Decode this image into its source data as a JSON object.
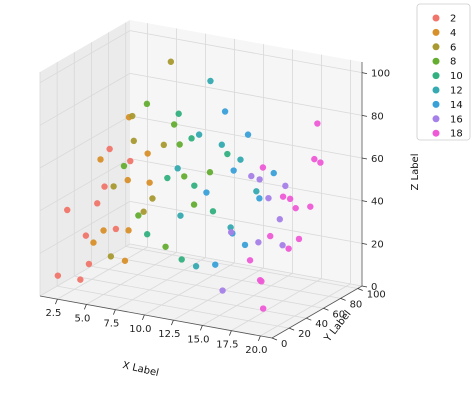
{
  "chart_data": {
    "type": "scatter",
    "title": "",
    "xlabel": "X Label",
    "ylabel": "Y Label",
    "zlabel": "Z Label",
    "xlim": [
      1,
      21
    ],
    "ylim": [
      0,
      105
    ],
    "zlim": [
      0,
      105
    ],
    "x_ticks": [
      "2.5",
      "5.0",
      "7.5",
      "10.0",
      "12.5",
      "15.0",
      "17.5",
      "20.0"
    ],
    "y_ticks": [
      "0",
      "20",
      "40",
      "60",
      "80",
      "100"
    ],
    "z_ticks": [
      "0",
      "20",
      "40",
      "60",
      "80",
      "100"
    ],
    "grid": true,
    "legend_position": "upper-right-outside",
    "series": [
      {
        "name": "2",
        "color": "#f0756a",
        "points": [
          [
            1.5,
            25,
            35
          ],
          [
            2,
            40,
            20
          ],
          [
            2.5,
            55,
            40
          ],
          [
            1.5,
            60,
            30
          ],
          [
            2,
            75,
            15
          ],
          [
            3,
            20,
            5
          ],
          [
            2.5,
            85,
            45
          ],
          [
            3,
            30,
            10
          ],
          [
            1.8,
            10,
            8
          ],
          [
            2.2,
            65,
            55
          ]
        ]
      },
      {
        "name": "4",
        "color": "#d8902a",
        "points": [
          [
            4,
            30,
            60
          ],
          [
            4.5,
            55,
            45
          ],
          [
            5,
            20,
            30
          ],
          [
            3.5,
            70,
            70
          ],
          [
            4,
            85,
            50
          ],
          [
            5,
            45,
            10
          ],
          [
            4.5,
            15,
            25
          ],
          [
            3.8,
            90,
            35
          ],
          [
            4.2,
            60,
            20
          ]
        ]
      },
      {
        "name": "6",
        "color": "#a89a30",
        "points": [
          [
            6,
            40,
            80
          ],
          [
            6.5,
            70,
            60
          ],
          [
            5.5,
            25,
            50
          ],
          [
            6,
            85,
            95
          ],
          [
            7,
            50,
            40
          ],
          [
            6,
            15,
            20
          ],
          [
            5.5,
            60,
            30
          ],
          [
            6.5,
            35,
            70
          ]
        ]
      },
      {
        "name": "8",
        "color": "#64ad31",
        "points": [
          [
            8,
            30,
            90
          ],
          [
            8.5,
            55,
            75
          ],
          [
            7.5,
            75,
            60
          ],
          [
            8,
            20,
            40
          ],
          [
            9,
            60,
            50
          ],
          [
            8,
            85,
            30
          ],
          [
            8.5,
            45,
            20
          ],
          [
            7.5,
            10,
            65
          ],
          [
            9,
            90,
            45
          ]
        ]
      },
      {
        "name": "10",
        "color": "#33b080",
        "points": [
          [
            10,
            40,
            85
          ],
          [
            10.5,
            20,
            60
          ],
          [
            9.5,
            65,
            45
          ],
          [
            10,
            80,
            30
          ],
          [
            11,
            30,
            20
          ],
          [
            10,
            55,
            70
          ],
          [
            9.5,
            10,
            35
          ],
          [
            10.5,
            90,
            55
          ]
        ]
      },
      {
        "name": "12",
        "color": "#35aab0",
        "points": [
          [
            12,
            50,
            100
          ],
          [
            12.5,
            30,
            80
          ],
          [
            11.5,
            70,
            65
          ],
          [
            12,
            15,
            45
          ],
          [
            13,
            60,
            30
          ],
          [
            12,
            85,
            55
          ],
          [
            11.5,
            40,
            15
          ],
          [
            12.5,
            5,
            70
          ],
          [
            13,
            90,
            40
          ]
        ]
      },
      {
        "name": "14",
        "color": "#3aa0d8",
        "points": [
          [
            14,
            40,
            90
          ],
          [
            14.5,
            60,
            75
          ],
          [
            13.5,
            25,
            55
          ],
          [
            14,
            80,
            40
          ],
          [
            15,
            15,
            25
          ],
          [
            14,
            50,
            60
          ],
          [
            13.5,
            70,
            20
          ],
          [
            14.5,
            90,
            50
          ],
          [
            15,
            35,
            35
          ]
        ]
      },
      {
        "name": "16",
        "color": "#a680e8",
        "points": [
          [
            16,
            20,
            40
          ],
          [
            16.5,
            45,
            30
          ],
          [
            15.5,
            60,
            55
          ],
          [
            16,
            80,
            20
          ],
          [
            17,
            30,
            65
          ],
          [
            16,
            10,
            15
          ],
          [
            15.5,
            90,
            45
          ],
          [
            16.5,
            70,
            35
          ],
          [
            17,
            50,
            50
          ]
        ]
      },
      {
        "name": "18",
        "color": "#ee5ad6",
        "points": [
          [
            18,
            30,
            70
          ],
          [
            18.5,
            55,
            50
          ],
          [
            17.5,
            75,
            40
          ],
          [
            18,
            15,
            30
          ],
          [
            19,
            40,
            55
          ],
          [
            18,
            90,
            60
          ],
          [
            19.5,
            65,
            45
          ],
          [
            18.5,
            20,
            20
          ],
          [
            19,
            80,
            80
          ],
          [
            20,
            45,
            35
          ],
          [
            19.5,
            10,
            10
          ],
          [
            20,
            70,
            65
          ],
          [
            17.5,
            35,
            15
          ],
          [
            18,
            60,
            25
          ],
          [
            19,
            25,
            40
          ]
        ]
      }
    ]
  }
}
